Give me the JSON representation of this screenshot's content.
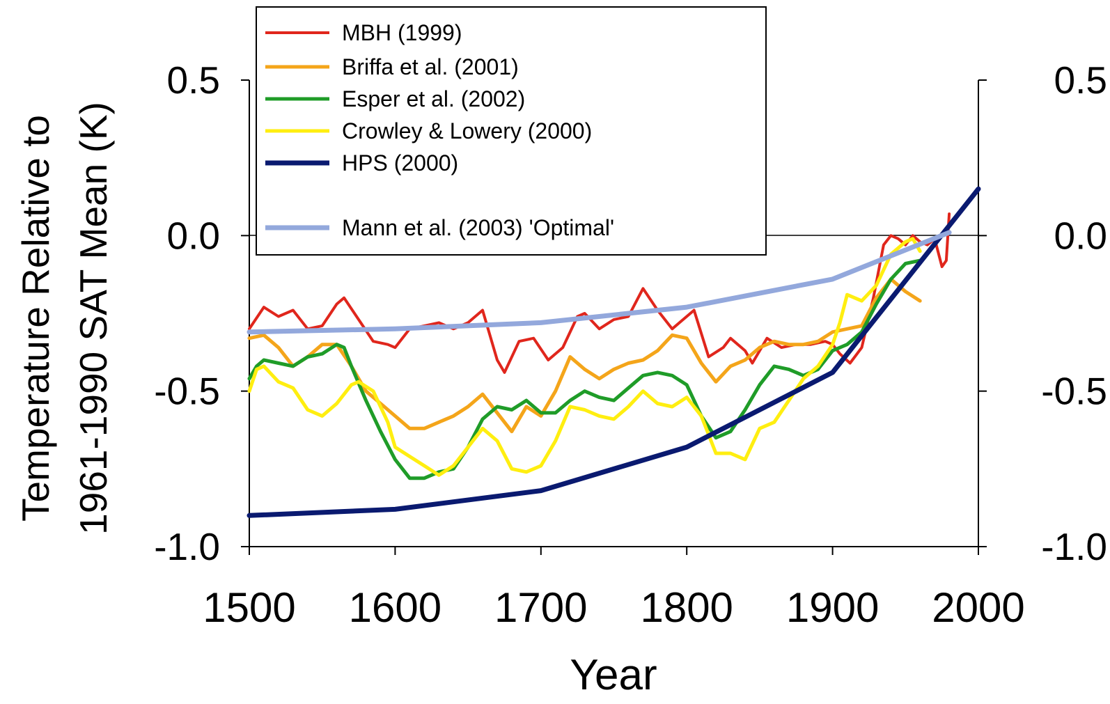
{
  "chart_data": {
    "type": "line",
    "title": "",
    "xlabel": "Year",
    "ylabel_line1": "Temperature Relative to",
    "ylabel_line2": "1961-1990 SAT Mean (K)",
    "xlim": [
      1500,
      2000
    ],
    "ylim": [
      -1.0,
      0.5
    ],
    "x_ticks": [
      "1500",
      "1600",
      "1700",
      "1800",
      "1900",
      "2000"
    ],
    "y_ticks": [
      "0.5",
      "0.0",
      "-0.5",
      "-1.0"
    ],
    "right_y_ticks": [
      "0.5",
      "0.0",
      "-0.5",
      "-1.0"
    ],
    "grid": false,
    "zero_line": true,
    "legend_position": "top-left",
    "series": [
      {
        "name": "MBH (1999)",
        "color": "#e0261c",
        "x": [
          1500,
          1510,
          1520,
          1530,
          1540,
          1550,
          1560,
          1565,
          1575,
          1585,
          1595,
          1600,
          1610,
          1620,
          1630,
          1640,
          1650,
          1660,
          1670,
          1675,
          1685,
          1695,
          1705,
          1715,
          1725,
          1730,
          1740,
          1750,
          1760,
          1770,
          1780,
          1790,
          1795,
          1805,
          1815,
          1825,
          1830,
          1840,
          1845,
          1855,
          1865,
          1875,
          1885,
          1895,
          1900,
          1905,
          1912,
          1920,
          1928,
          1935,
          1940,
          1945,
          1950,
          1955,
          1960,
          1965,
          1970,
          1975,
          1978,
          1980
        ],
        "values": [
          -0.3,
          -0.23,
          -0.26,
          -0.24,
          -0.3,
          -0.29,
          -0.22,
          -0.2,
          -0.27,
          -0.34,
          -0.35,
          -0.36,
          -0.3,
          -0.29,
          -0.28,
          -0.3,
          -0.28,
          -0.24,
          -0.4,
          -0.44,
          -0.34,
          -0.33,
          -0.4,
          -0.36,
          -0.26,
          -0.25,
          -0.3,
          -0.27,
          -0.26,
          -0.17,
          -0.24,
          -0.3,
          -0.28,
          -0.24,
          -0.39,
          -0.36,
          -0.33,
          -0.37,
          -0.41,
          -0.33,
          -0.36,
          -0.35,
          -0.35,
          -0.34,
          -0.35,
          -0.38,
          -0.41,
          -0.36,
          -0.2,
          -0.03,
          0.0,
          -0.01,
          -0.03,
          0.0,
          -0.02,
          -0.03,
          -0.01,
          -0.1,
          -0.08,
          0.07
        ]
      },
      {
        "name": "Briffa et al. (2001)",
        "color": "#f4a51a",
        "x": [
          1500,
          1510,
          1520,
          1530,
          1540,
          1550,
          1560,
          1570,
          1580,
          1590,
          1600,
          1610,
          1620,
          1630,
          1640,
          1650,
          1660,
          1670,
          1680,
          1690,
          1700,
          1710,
          1720,
          1730,
          1740,
          1750,
          1760,
          1770,
          1780,
          1790,
          1800,
          1810,
          1820,
          1830,
          1840,
          1850,
          1860,
          1870,
          1880,
          1890,
          1900,
          1910,
          1920,
          1930,
          1940,
          1950,
          1960
        ],
        "values": [
          -0.33,
          -0.32,
          -0.36,
          -0.42,
          -0.39,
          -0.35,
          -0.35,
          -0.42,
          -0.5,
          -0.54,
          -0.58,
          -0.62,
          -0.62,
          -0.6,
          -0.58,
          -0.55,
          -0.51,
          -0.57,
          -0.63,
          -0.55,
          -0.58,
          -0.5,
          -0.39,
          -0.43,
          -0.46,
          -0.43,
          -0.41,
          -0.4,
          -0.37,
          -0.32,
          -0.33,
          -0.41,
          -0.47,
          -0.42,
          -0.4,
          -0.36,
          -0.34,
          -0.35,
          -0.35,
          -0.34,
          -0.31,
          -0.3,
          -0.29,
          -0.2,
          -0.14,
          -0.18,
          -0.21
        ]
      },
      {
        "name": "Esper et al. (2002)",
        "color": "#1f9c28",
        "x": [
          1500,
          1505,
          1510,
          1520,
          1530,
          1540,
          1550,
          1560,
          1565,
          1570,
          1580,
          1590,
          1600,
          1610,
          1620,
          1630,
          1640,
          1650,
          1660,
          1670,
          1680,
          1690,
          1700,
          1710,
          1720,
          1730,
          1740,
          1750,
          1760,
          1770,
          1780,
          1790,
          1800,
          1810,
          1820,
          1830,
          1840,
          1850,
          1860,
          1870,
          1880,
          1890,
          1900,
          1910,
          1920,
          1930,
          1940,
          1950,
          1960
        ],
        "values": [
          -0.46,
          -0.42,
          -0.4,
          -0.41,
          -0.42,
          -0.39,
          -0.38,
          -0.35,
          -0.36,
          -0.42,
          -0.53,
          -0.63,
          -0.72,
          -0.78,
          -0.78,
          -0.76,
          -0.75,
          -0.68,
          -0.59,
          -0.55,
          -0.56,
          -0.53,
          -0.57,
          -0.57,
          -0.53,
          -0.5,
          -0.52,
          -0.53,
          -0.49,
          -0.45,
          -0.44,
          -0.45,
          -0.48,
          -0.58,
          -0.65,
          -0.63,
          -0.56,
          -0.48,
          -0.42,
          -0.43,
          -0.45,
          -0.43,
          -0.37,
          -0.35,
          -0.31,
          -0.22,
          -0.14,
          -0.09,
          -0.08
        ]
      },
      {
        "name": "Crowley & Lowery (2000)",
        "color": "#ffee10",
        "x": [
          1500,
          1505,
          1510,
          1520,
          1530,
          1540,
          1550,
          1560,
          1570,
          1575,
          1585,
          1595,
          1600,
          1610,
          1620,
          1630,
          1640,
          1650,
          1660,
          1670,
          1680,
          1690,
          1700,
          1710,
          1720,
          1730,
          1740,
          1750,
          1760,
          1770,
          1780,
          1790,
          1800,
          1810,
          1820,
          1830,
          1840,
          1850,
          1860,
          1870,
          1880,
          1890,
          1900,
          1905,
          1910,
          1920,
          1930,
          1940,
          1950,
          1955,
          1960
        ],
        "values": [
          -0.5,
          -0.43,
          -0.42,
          -0.47,
          -0.49,
          -0.56,
          -0.58,
          -0.54,
          -0.48,
          -0.47,
          -0.5,
          -0.6,
          -0.68,
          -0.71,
          -0.74,
          -0.77,
          -0.74,
          -0.68,
          -0.62,
          -0.66,
          -0.75,
          -0.76,
          -0.74,
          -0.66,
          -0.55,
          -0.56,
          -0.58,
          -0.59,
          -0.55,
          -0.5,
          -0.54,
          -0.55,
          -0.52,
          -0.58,
          -0.7,
          -0.7,
          -0.72,
          -0.62,
          -0.6,
          -0.53,
          -0.46,
          -0.42,
          -0.35,
          -0.28,
          -0.19,
          -0.21,
          -0.16,
          -0.06,
          -0.02,
          -0.01,
          -0.05
        ]
      },
      {
        "name": "HPS (2000)",
        "color": "#0a1a70",
        "x": [
          1500,
          1600,
          1700,
          1800,
          1900,
          2000
        ],
        "values": [
          -0.9,
          -0.88,
          -0.82,
          -0.68,
          -0.44,
          0.15
        ]
      },
      {
        "name": "Mann et al. (2003) 'Optimal'",
        "color": "#93a8dc",
        "x": [
          1500,
          1600,
          1700,
          1800,
          1900,
          1980
        ],
        "values": [
          -0.31,
          -0.3,
          -0.28,
          -0.23,
          -0.14,
          0.01
        ]
      }
    ]
  },
  "legend": {
    "items": [
      {
        "label": "MBH (1999)",
        "color": "#e0261c"
      },
      {
        "label": "Briffa et al. (2001)",
        "color": "#f4a51a"
      },
      {
        "label": "Esper et al. (2002)",
        "color": "#1f9c28"
      },
      {
        "label": "Crowley & Lowery (2000)",
        "color": "#ffee10"
      },
      {
        "label": "HPS (2000)",
        "color": "#0a1a70"
      },
      {
        "label": "Mann et al. (2003) 'Optimal'",
        "color": "#93a8dc"
      }
    ]
  }
}
